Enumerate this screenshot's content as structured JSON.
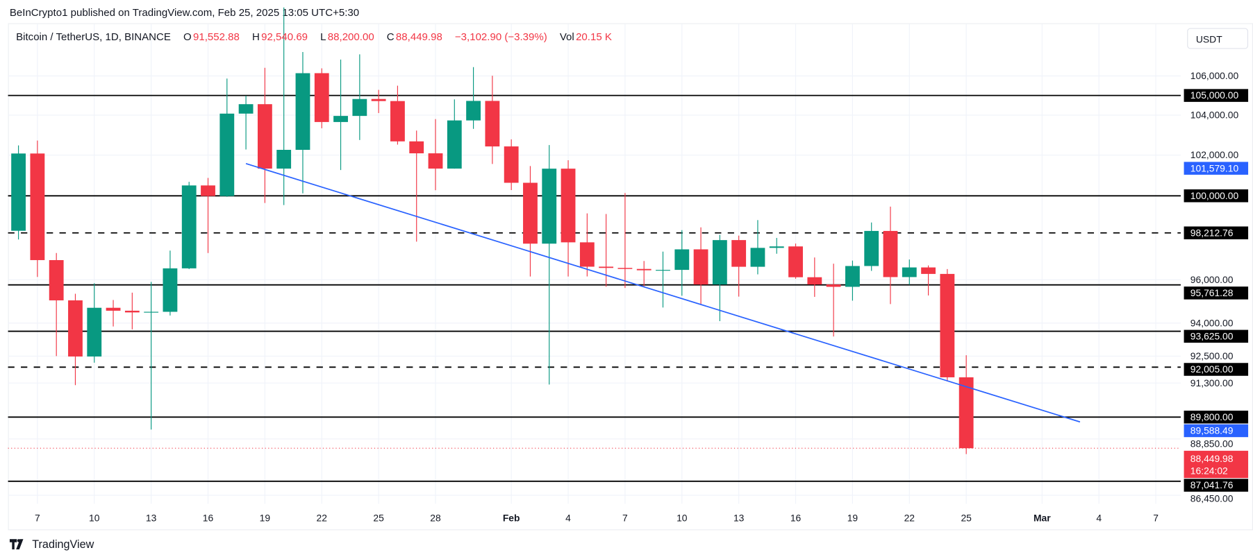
{
  "publish_line": "BeInCrypto1 published on TradingView.com, Feb 25, 2025 13:05 UTC+5:30",
  "legend": {
    "symbol": "Bitcoin / TetherUS, 1D, BINANCE",
    "o_label": "O",
    "o": "91,552.88",
    "h_label": "H",
    "h": "92,540.69",
    "l_label": "L",
    "l": "88,200.00",
    "c_label": "C",
    "c": "88,449.98",
    "change": "−3,102.90 (−3.39%)",
    "vol_label": "Vol",
    "vol": "20.15 K"
  },
  "currency_button": "USDT",
  "brand": "TradingView",
  "colors": {
    "up": "#089981",
    "down": "#F23645",
    "trendline": "#2962FF",
    "level": "#000000",
    "grid": "#f0f3fa"
  },
  "chart_data": {
    "type": "candlestick",
    "y_scale": "log",
    "ylim": [
      86100,
      108700
    ],
    "grid": true,
    "y_ticks": [
      "106,000.00",
      "104,000.00",
      "102,000.00",
      "96,000.00",
      "94,000.00",
      "92,500.00",
      "91,300.00",
      "88,850.00",
      "86,450.00"
    ],
    "y_tick_values": [
      106000,
      104000,
      102000,
      96000,
      94000,
      92500,
      91300,
      88850,
      86450
    ],
    "x_ticks": [
      {
        "label": "7",
        "date": "2025-01-07"
      },
      {
        "label": "10",
        "date": "2025-01-10"
      },
      {
        "label": "13",
        "date": "2025-01-13"
      },
      {
        "label": "16",
        "date": "2025-01-16"
      },
      {
        "label": "19",
        "date": "2025-01-19"
      },
      {
        "label": "22",
        "date": "2025-01-22"
      },
      {
        "label": "25",
        "date": "2025-01-25"
      },
      {
        "label": "28",
        "date": "2025-01-28"
      },
      {
        "label": "Feb",
        "date": "2025-02-01"
      },
      {
        "label": "4",
        "date": "2025-02-04"
      },
      {
        "label": "7",
        "date": "2025-02-07"
      },
      {
        "label": "10",
        "date": "2025-02-10"
      },
      {
        "label": "13",
        "date": "2025-02-13"
      },
      {
        "label": "16",
        "date": "2025-02-16"
      },
      {
        "label": "19",
        "date": "2025-02-19"
      },
      {
        "label": "22",
        "date": "2025-02-22"
      },
      {
        "label": "25",
        "date": "2025-02-25"
      },
      {
        "label": "Mar",
        "date": "2025-03-01"
      },
      {
        "label": "4",
        "date": "2025-03-04"
      },
      {
        "label": "7",
        "date": "2025-03-07"
      }
    ],
    "start_date": "2025-01-06",
    "candles": [
      [
        98314,
        102480,
        97900,
        102078
      ],
      [
        102078,
        102724,
        96132,
        96922
      ],
      [
        96922,
        97258,
        92500,
        95043
      ],
      [
        95043,
        95349,
        91203,
        92484
      ],
      [
        92484,
        95836,
        92206,
        94701
      ],
      [
        94701,
        95060,
        93844,
        94566
      ],
      [
        94566,
        95400,
        93712,
        94488
      ],
      [
        94488,
        95900,
        89256,
        94516
      ],
      [
        94516,
        97371,
        94346,
        96534
      ],
      [
        96534,
        100681,
        96500,
        100505
      ],
      [
        100505,
        100873,
        97256,
        99987
      ],
      [
        99987,
        105865,
        99950,
        104077
      ],
      [
        104077,
        104988,
        102277,
        104556
      ],
      [
        104556,
        106422,
        99651,
        101331
      ],
      [
        101331,
        109588,
        99550,
        102260
      ],
      [
        102260,
        107240,
        100119,
        106143
      ],
      [
        106144,
        106394,
        103339,
        103653
      ],
      [
        103653,
        106850,
        101262,
        103960
      ],
      [
        103960,
        107120,
        102750,
        104819
      ],
      [
        104820,
        105286,
        104106,
        104714
      ],
      [
        104714,
        105500,
        102520,
        102682
      ],
      [
        102682,
        103220,
        97795,
        102087
      ],
      [
        102087,
        103800,
        100272,
        101332
      ],
      [
        101332,
        104800,
        101328,
        103733
      ],
      [
        103733,
        106457,
        103308,
        104722
      ],
      [
        104722,
        106012,
        101560,
        102429
      ],
      [
        102430,
        102783,
        100279,
        100635
      ],
      [
        100635,
        101456,
        96150,
        97700
      ],
      [
        97700,
        102500,
        91231,
        101328
      ],
      [
        101328,
        101745,
        96150,
        97763
      ],
      [
        97763,
        99149,
        96155,
        96612
      ],
      [
        96613,
        99120,
        95676,
        96554
      ],
      [
        96554,
        100137,
        95620,
        96506
      ],
      [
        96506,
        96880,
        95688,
        96444
      ],
      [
        96444,
        97323,
        94713,
        96462
      ],
      [
        96462,
        98345,
        95256,
        97430
      ],
      [
        97430,
        98478,
        94876,
        95778
      ],
      [
        95778,
        98119,
        94088,
        97869
      ],
      [
        97870,
        98083,
        95217,
        96608
      ],
      [
        96608,
        98826,
        96252,
        97500
      ],
      [
        97500,
        97972,
        97223,
        97569
      ],
      [
        97569,
        97704,
        96046,
        96118
      ],
      [
        96118,
        97046,
        95205,
        95780
      ],
      [
        95780,
        96753,
        93388,
        95671
      ],
      [
        95671,
        96899,
        95029,
        96644
      ],
      [
        96644,
        98711,
        96415,
        98306
      ],
      [
        98306,
        99475,
        94871,
        96125
      ],
      [
        96125,
        96950,
        95770,
        96577
      ],
      [
        96577,
        96671,
        95270,
        96273
      ],
      [
        96273,
        96503,
        91371,
        91552.88
      ],
      [
        91552.88,
        92540.69,
        88200,
        88449.98
      ]
    ],
    "levels": [
      {
        "value": 105000,
        "label": "105,000.00",
        "style": "solid"
      },
      {
        "value": 100000,
        "label": "100,000.00",
        "style": "solid"
      },
      {
        "value": 98212.76,
        "label": "98,212.76",
        "style": "dashed"
      },
      {
        "value": 95761.28,
        "label": "95,761.28",
        "style": "solid"
      },
      {
        "value": 93625,
        "label": "93,625.00",
        "style": "solid"
      },
      {
        "value": 92005,
        "label": "92,005.00",
        "style": "dashed"
      },
      {
        "value": 89800,
        "label": "89,800.00",
        "style": "solid"
      },
      {
        "value": 87041.76,
        "label": "87,041.76",
        "style": "solid"
      }
    ],
    "trendline": {
      "start": {
        "date": "2025-01-18",
        "value": 101579.1,
        "label": "101,579.10"
      },
      "end": {
        "date": "2025-03-03",
        "value": 89588.49,
        "label": "89,588.49"
      }
    },
    "last_price": {
      "value": 88449.98,
      "label": "88,449.98",
      "countdown": "16:24:02"
    }
  }
}
